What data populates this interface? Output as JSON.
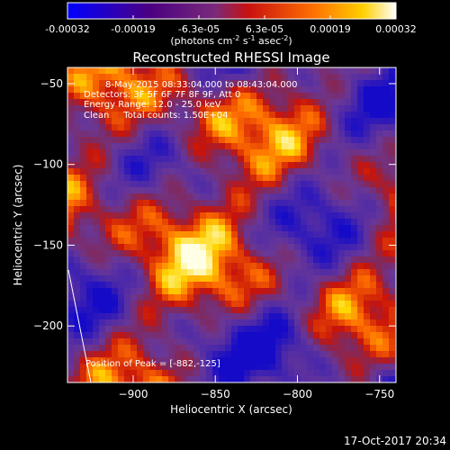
{
  "chart_data": {
    "type": "heatmap",
    "title": "Reconstructed RHESSI Image",
    "colorbar": {
      "ticks": [
        "-0.00032",
        "-0.00019",
        "-6.3e-05",
        "6.3e-05",
        "0.00019",
        "0.00032"
      ],
      "unit_prefix": "(photons cm",
      "unit_sup1": "-2",
      "unit_mid": " s",
      "unit_sup2": "-1",
      "unit_end": " asec",
      "unit_sup3": "-2",
      "unit_close": ")",
      "range": [
        -0.00032,
        0.00032
      ]
    },
    "info_lines": [
      "8-May-2015 08:33:04.000 to 08:43:04.000",
      "Detectors: 3F 5F 6F 7F 8F 9F, Att 0",
      "Energy Range: 12.0 - 25.0 keV",
      "Clean     Total counts: 1.50E+04"
    ],
    "xlabel": "Heliocentric X (arcsec)",
    "ylabel": "Heliocentric Y (arcsec)",
    "xlim": [
      -940,
      -740
    ],
    "ylim": [
      -235,
      -40
    ],
    "xticks": [
      {
        "value": -900,
        "label": "−900"
      },
      {
        "value": -850,
        "label": "−850"
      },
      {
        "value": -800,
        "label": "−800"
      },
      {
        "value": -750,
        "label": "−750"
      }
    ],
    "yticks": [
      {
        "value": -50,
        "label": "−50"
      },
      {
        "value": -100,
        "label": "−100"
      },
      {
        "value": -150,
        "label": "−150"
      },
      {
        "value": -200,
        "label": "−200"
      }
    ],
    "peak_label": "Position of Peak = [-882,-125]",
    "peak": [
      -882,
      -125
    ],
    "grid": false
  },
  "footer": {
    "timestamp": "17-Oct-2017 20:34"
  }
}
